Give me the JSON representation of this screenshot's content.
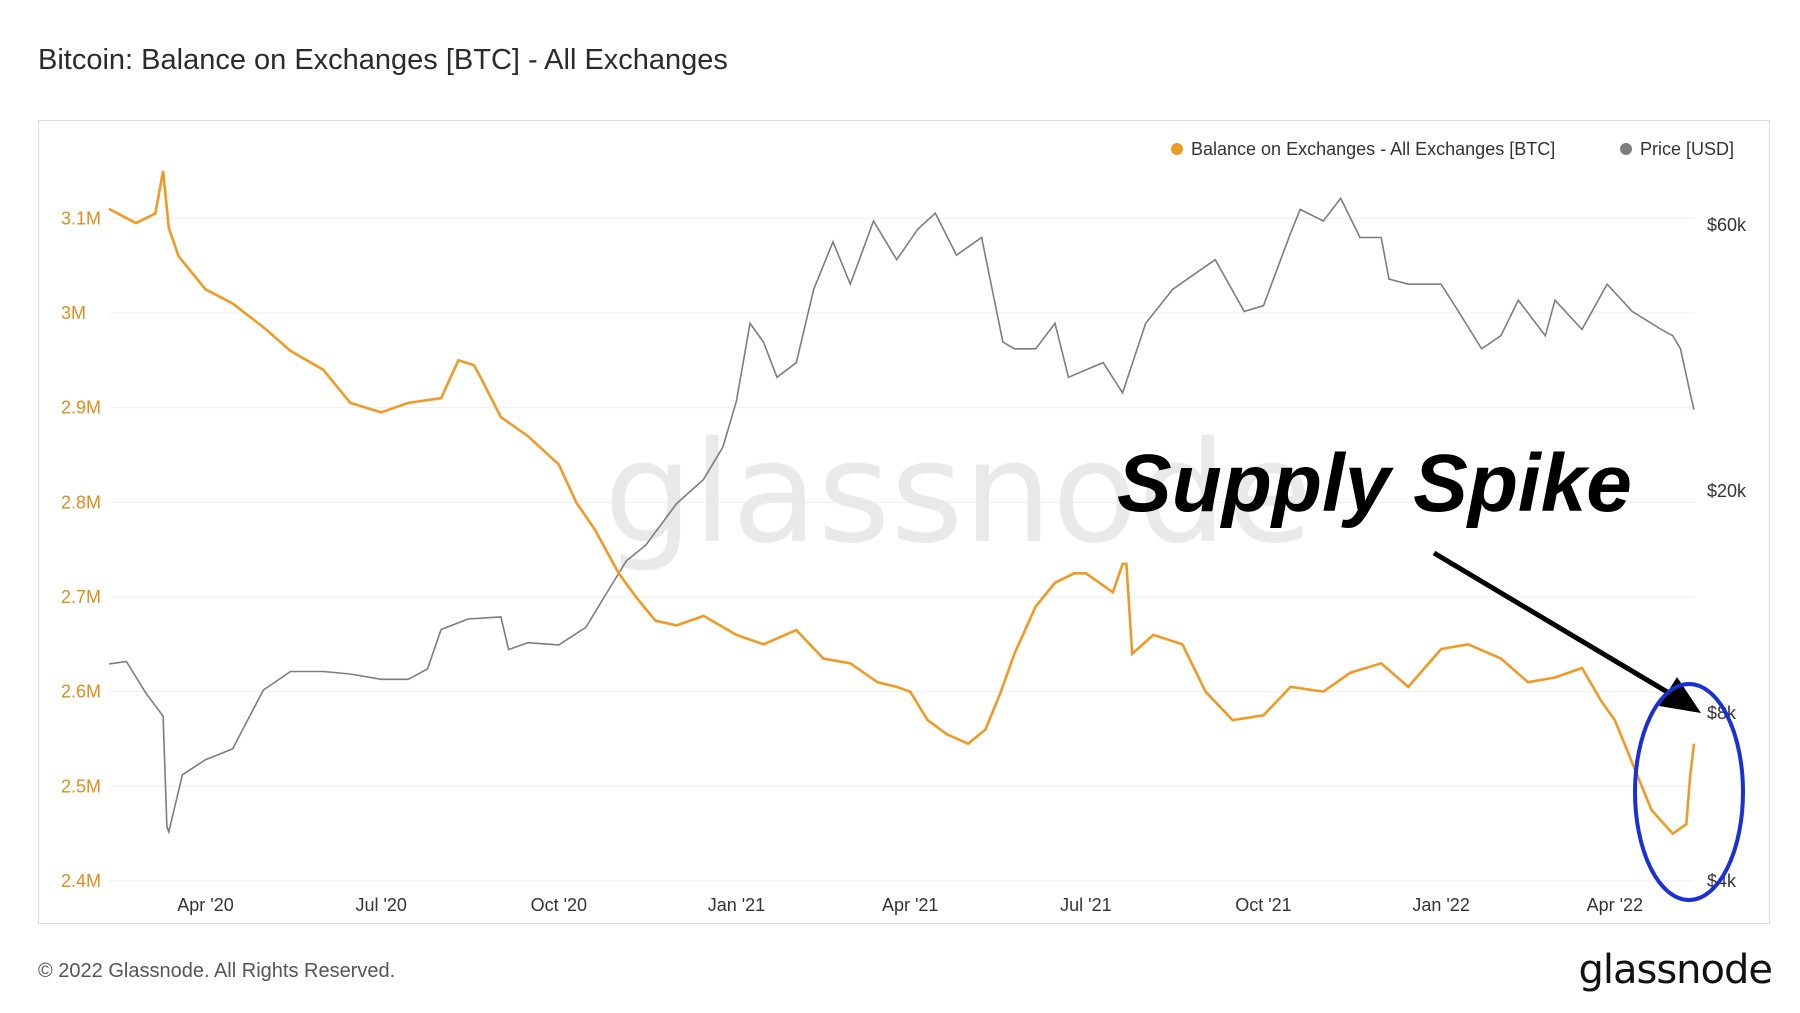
{
  "page": {
    "title": "Bitcoin: Balance on Exchanges [BTC] - All Exchanges",
    "copyright": "© 2022 Glassnode. All Rights Reserved.",
    "logo": "glassnode",
    "watermark": "glassnode"
  },
  "chart_data": {
    "type": "line",
    "title": "Bitcoin: Balance on Exchanges [BTC] - All Exchanges",
    "xlabel": "",
    "ylabel": "",
    "grid": true,
    "legend_position": "top-right",
    "x_ticks": [
      "Apr '20",
      "Jul '20",
      "Oct '20",
      "Jan '21",
      "Apr '21",
      "Jul '21",
      "Oct '21",
      "Jan '22",
      "Apr '22"
    ],
    "y_left": {
      "ticks": [
        "2.4M",
        "2.5M",
        "2.6M",
        "2.7M",
        "2.8M",
        "2.9M",
        "3M",
        "3.1M"
      ],
      "range": [
        2400000,
        3150000
      ],
      "color": "#e08c1b"
    },
    "y_right": {
      "ticks": [
        "$4k",
        "$8k",
        "$20k",
        "$60k"
      ],
      "scale": "log",
      "range": [
        4000,
        75000
      ],
      "color": "#333333"
    },
    "series": [
      {
        "name": "Balance on Exchanges - All Exchanges [BTC]",
        "axis": "left",
        "color": "#f09a25",
        "x": [
          "2020-02-11",
          "2020-02-25",
          "2020-03-06",
          "2020-03-10",
          "2020-03-13",
          "2020-03-18",
          "2020-04-01",
          "2020-04-15",
          "2020-05-01",
          "2020-05-15",
          "2020-06-01",
          "2020-06-15",
          "2020-07-01",
          "2020-07-15",
          "2020-08-01",
          "2020-08-10",
          "2020-08-18",
          "2020-08-22",
          "2020-09-01",
          "2020-09-15",
          "2020-10-01",
          "2020-10-10",
          "2020-10-20",
          "2020-11-01",
          "2020-11-10",
          "2020-11-20",
          "2020-12-01",
          "2020-12-15",
          "2021-01-01",
          "2021-01-15",
          "2021-02-01",
          "2021-02-15",
          "2021-03-01",
          "2021-03-15",
          "2021-03-25",
          "2021-04-01",
          "2021-04-10",
          "2021-04-20",
          "2021-05-01",
          "2021-05-10",
          "2021-05-18",
          "2021-05-25",
          "2021-06-05",
          "2021-06-15",
          "2021-06-25",
          "2021-07-01",
          "2021-07-15",
          "2021-07-20",
          "2021-07-22",
          "2021-07-25",
          "2021-08-05",
          "2021-08-20",
          "2021-09-01",
          "2021-09-15",
          "2021-10-01",
          "2021-10-15",
          "2021-11-01",
          "2021-11-15",
          "2021-12-01",
          "2021-12-15",
          "2022-01-01",
          "2022-01-15",
          "2022-02-01",
          "2022-02-15",
          "2022-03-01",
          "2022-03-15",
          "2022-03-25",
          "2022-04-01",
          "2022-04-10",
          "2022-04-20",
          "2022-05-01",
          "2022-05-08",
          "2022-05-10",
          "2022-05-12"
        ],
        "values": [
          3110000,
          3095000,
          3105000,
          3150000,
          3090000,
          3060000,
          3025000,
          3010000,
          2985000,
          2960000,
          2940000,
          2905000,
          2895000,
          2905000,
          2910000,
          2950000,
          2945000,
          2930000,
          2890000,
          2870000,
          2840000,
          2800000,
          2770000,
          2725000,
          2700000,
          2675000,
          2670000,
          2680000,
          2660000,
          2650000,
          2665000,
          2635000,
          2630000,
          2610000,
          2605000,
          2600000,
          2570000,
          2555000,
          2545000,
          2560000,
          2600000,
          2640000,
          2690000,
          2715000,
          2725000,
          2725000,
          2705000,
          2735000,
          2735000,
          2640000,
          2660000,
          2650000,
          2600000,
          2570000,
          2575000,
          2605000,
          2600000,
          2620000,
          2630000,
          2605000,
          2645000,
          2650000,
          2635000,
          2610000,
          2615000,
          2625000,
          2590000,
          2570000,
          2525000,
          2475000,
          2450000,
          2460000,
          2510000,
          2545000
        ]
      },
      {
        "name": "Price [USD]",
        "axis": "right",
        "color": "#7d7d7d",
        "x": [
          "2020-02-11",
          "2020-02-20",
          "2020-03-01",
          "2020-03-10",
          "2020-03-12",
          "2020-03-13",
          "2020-03-20",
          "2020-04-01",
          "2020-04-15",
          "2020-05-01",
          "2020-05-15",
          "2020-06-01",
          "2020-06-15",
          "2020-07-01",
          "2020-07-15",
          "2020-07-25",
          "2020-08-01",
          "2020-08-15",
          "2020-09-01",
          "2020-09-05",
          "2020-09-15",
          "2020-10-01",
          "2020-10-15",
          "2020-10-25",
          "2020-11-05",
          "2020-11-15",
          "2020-12-01",
          "2020-12-15",
          "2020-12-25",
          "2021-01-01",
          "2021-01-08",
          "2021-01-15",
          "2021-01-22",
          "2021-02-01",
          "2021-02-10",
          "2021-02-20",
          "2021-03-01",
          "2021-03-13",
          "2021-03-25",
          "2021-04-05",
          "2021-04-14",
          "2021-04-25",
          "2021-05-08",
          "2021-05-19",
          "2021-05-25",
          "2021-06-05",
          "2021-06-15",
          "2021-06-22",
          "2021-07-01",
          "2021-07-10",
          "2021-07-20",
          "2021-08-01",
          "2021-08-15",
          "2021-09-06",
          "2021-09-21",
          "2021-10-01",
          "2021-10-15",
          "2021-10-20",
          "2021-11-01",
          "2021-11-10",
          "2021-11-20",
          "2021-12-01",
          "2021-12-05",
          "2021-12-15",
          "2022-01-01",
          "2022-01-10",
          "2022-01-22",
          "2022-02-01",
          "2022-02-10",
          "2022-02-24",
          "2022-03-01",
          "2022-03-15",
          "2022-03-28",
          "2022-04-10",
          "2022-04-25",
          "2022-05-01",
          "2022-05-05",
          "2022-05-10",
          "2022-05-12"
        ],
        "values": [
          9800,
          9900,
          8700,
          7900,
          5000,
          4900,
          6200,
          6600,
          6900,
          8800,
          9500,
          9500,
          9400,
          9200,
          9200,
          9600,
          11300,
          11800,
          11900,
          10400,
          10700,
          10600,
          11400,
          13000,
          15000,
          16000,
          19000,
          21000,
          24000,
          29000,
          40000,
          37000,
          32000,
          34000,
          46000,
          56000,
          47000,
          61000,
          52000,
          59000,
          63000,
          53000,
          57000,
          37000,
          36000,
          36000,
          40000,
          32000,
          33000,
          34000,
          30000,
          40000,
          46000,
          52000,
          42000,
          43000,
          58000,
          64000,
          61000,
          67000,
          57000,
          57000,
          48000,
          47000,
          47000,
          42000,
          36000,
          38000,
          44000,
          38000,
          44000,
          39000,
          47000,
          42000,
          39000,
          38000,
          36000,
          30000,
          28000
        ]
      }
    ],
    "annotations": [
      {
        "text": "Supply Spike",
        "target_date": "2022-05-10",
        "shape": "ellipse",
        "shape_color": "#1a2fd6",
        "arrow_color": "#000000"
      }
    ]
  }
}
